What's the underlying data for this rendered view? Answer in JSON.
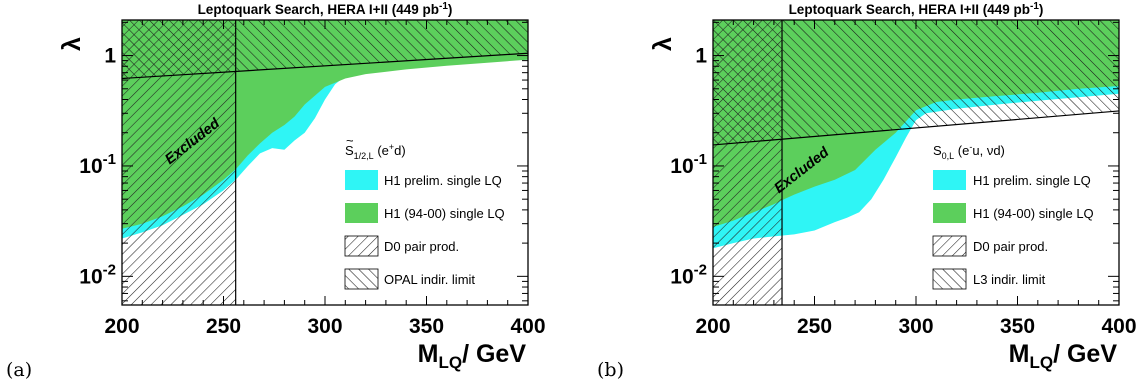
{
  "colors": {
    "h1_prelim": "#2ff5f5",
    "h1_9400": "#5ccf5c",
    "hatch_dense": "#1a1a1a",
    "hatch_sparse": "#222222",
    "axis": "#000000"
  },
  "chart_data": [
    {
      "type": "area",
      "panel_label": "(a)",
      "title": "Leptoquark Search, HERA I+II (449 pb",
      "title_sup": "-1",
      "title_end": ")",
      "xlabel_main": "M",
      "xlabel_sub": "LQ",
      "xlabel_rest": "/ GeV",
      "ylabel": "λ",
      "xlim": [
        200,
        400
      ],
      "ylim": [
        0.0055,
        2.1
      ],
      "yscale": "log",
      "x_ticks": [
        200,
        250,
        300,
        350,
        400
      ],
      "y_ticks": [
        {
          "value": 1,
          "base": "1",
          "exp": ""
        },
        {
          "value": 0.1,
          "base": "10",
          "exp": "-1"
        },
        {
          "value": 0.01,
          "base": "10",
          "exp": "-2"
        }
      ],
      "channel": {
        "main": "S",
        "tilde": true,
        "sub": "1/2,L",
        "rest": " (e",
        "sup": "+",
        "end": "d)"
      },
      "excluded_label": "Excluded",
      "excluded_label_at": {
        "x": 236,
        "y": 0.155
      },
      "legend": [
        {
          "label": "H1 prelim. single LQ",
          "style": "fill-cyan"
        },
        {
          "label": "H1 (94-00) single LQ",
          "style": "fill-green"
        },
        {
          "label": "D0 pair prod.",
          "style": "hatch-back"
        },
        {
          "label": "OPAL indir. limit",
          "style": "hatch-fwd"
        }
      ],
      "series": [
        {
          "name": "H1 prelim. single LQ",
          "style": "fill-cyan",
          "x": [
            200,
            210,
            220,
            230,
            240,
            250,
            256,
            262,
            268,
            274,
            280,
            285,
            290,
            295,
            300,
            305,
            310,
            320,
            340,
            360,
            380,
            400
          ],
          "y": [
            0.022,
            0.025,
            0.029,
            0.036,
            0.045,
            0.06,
            0.075,
            0.1,
            0.13,
            0.145,
            0.14,
            0.17,
            0.2,
            0.27,
            0.4,
            0.55,
            0.65,
            0.72,
            0.78,
            0.84,
            0.88,
            0.92
          ]
        },
        {
          "name": "H1 (94-00) single LQ",
          "style": "fill-green",
          "x": [
            200,
            210,
            220,
            230,
            240,
            250,
            256,
            262,
            268,
            274,
            280,
            285,
            290,
            300,
            310,
            320,
            340,
            360,
            380,
            400
          ],
          "y": [
            0.027,
            0.03,
            0.035,
            0.043,
            0.055,
            0.075,
            0.093,
            0.125,
            0.16,
            0.2,
            0.235,
            0.28,
            0.36,
            0.52,
            0.62,
            0.68,
            0.75,
            0.81,
            0.86,
            0.92
          ]
        },
        {
          "name": "D0 pair prod.",
          "style": "hatch-back",
          "x_limit": 256
        },
        {
          "name": "OPAL indir. limit",
          "style": "hatch-fwd",
          "x": [
            200,
            400
          ],
          "y": [
            0.62,
            1.05
          ]
        }
      ]
    },
    {
      "type": "area",
      "panel_label": "(b)",
      "title": "Leptoquark Search, HERA I+II (449 pb",
      "title_sup": "-1",
      "title_end": ")",
      "xlabel_main": "M",
      "xlabel_sub": "LQ",
      "xlabel_rest": "/ GeV",
      "ylabel": "λ",
      "xlim": [
        200,
        400
      ],
      "ylim": [
        0.0055,
        2.1
      ],
      "yscale": "log",
      "x_ticks": [
        200,
        250,
        300,
        350,
        400
      ],
      "y_ticks": [
        {
          "value": 1,
          "base": "1",
          "exp": ""
        },
        {
          "value": 0.1,
          "base": "10",
          "exp": "-1"
        },
        {
          "value": 0.01,
          "base": "10",
          "exp": "-2"
        }
      ],
      "channel": {
        "main": "S",
        "tilde": false,
        "sub": "0,L",
        "rest": " (e",
        "sup": "-",
        "end": "u, νd)"
      },
      "excluded_label": "Excluded",
      "excluded_label_at": {
        "x": 245,
        "y": 0.085
      },
      "legend": [
        {
          "label": "H1 prelim. single LQ",
          "style": "fill-cyan"
        },
        {
          "label": "H1 (94-00) single LQ",
          "style": "fill-green"
        },
        {
          "label": "D0 pair prod.",
          "style": "hatch-back"
        },
        {
          "label": "L3 indir. limit",
          "style": "hatch-fwd"
        }
      ],
      "series": [
        {
          "name": "H1 prelim. single LQ",
          "style": "fill-cyan",
          "x": [
            200,
            210,
            220,
            230,
            240,
            250,
            260,
            266,
            272,
            278,
            284,
            290,
            295,
            300,
            305,
            310,
            320,
            340,
            360,
            380,
            400
          ],
          "y": [
            0.018,
            0.02,
            0.022,
            0.023,
            0.024,
            0.026,
            0.031,
            0.034,
            0.038,
            0.05,
            0.075,
            0.12,
            0.18,
            0.26,
            0.3,
            0.31,
            0.33,
            0.36,
            0.39,
            0.42,
            0.45
          ]
        },
        {
          "name": "H1 (94-00) single LQ",
          "style": "fill-green",
          "x": [
            200,
            210,
            220,
            230,
            235,
            240,
            250,
            260,
            270,
            280,
            290,
            300,
            310,
            320,
            340,
            360,
            380,
            400
          ],
          "y": [
            0.028,
            0.032,
            0.038,
            0.045,
            0.05,
            0.055,
            0.065,
            0.075,
            0.092,
            0.14,
            0.2,
            0.32,
            0.38,
            0.4,
            0.43,
            0.46,
            0.5,
            0.53
          ]
        },
        {
          "name": "D0 pair prod.",
          "style": "hatch-back",
          "x_limit": 234
        },
        {
          "name": "L3 indir. limit",
          "style": "hatch-fwd",
          "x": [
            200,
            400
          ],
          "y": [
            0.155,
            0.315
          ]
        }
      ]
    }
  ]
}
